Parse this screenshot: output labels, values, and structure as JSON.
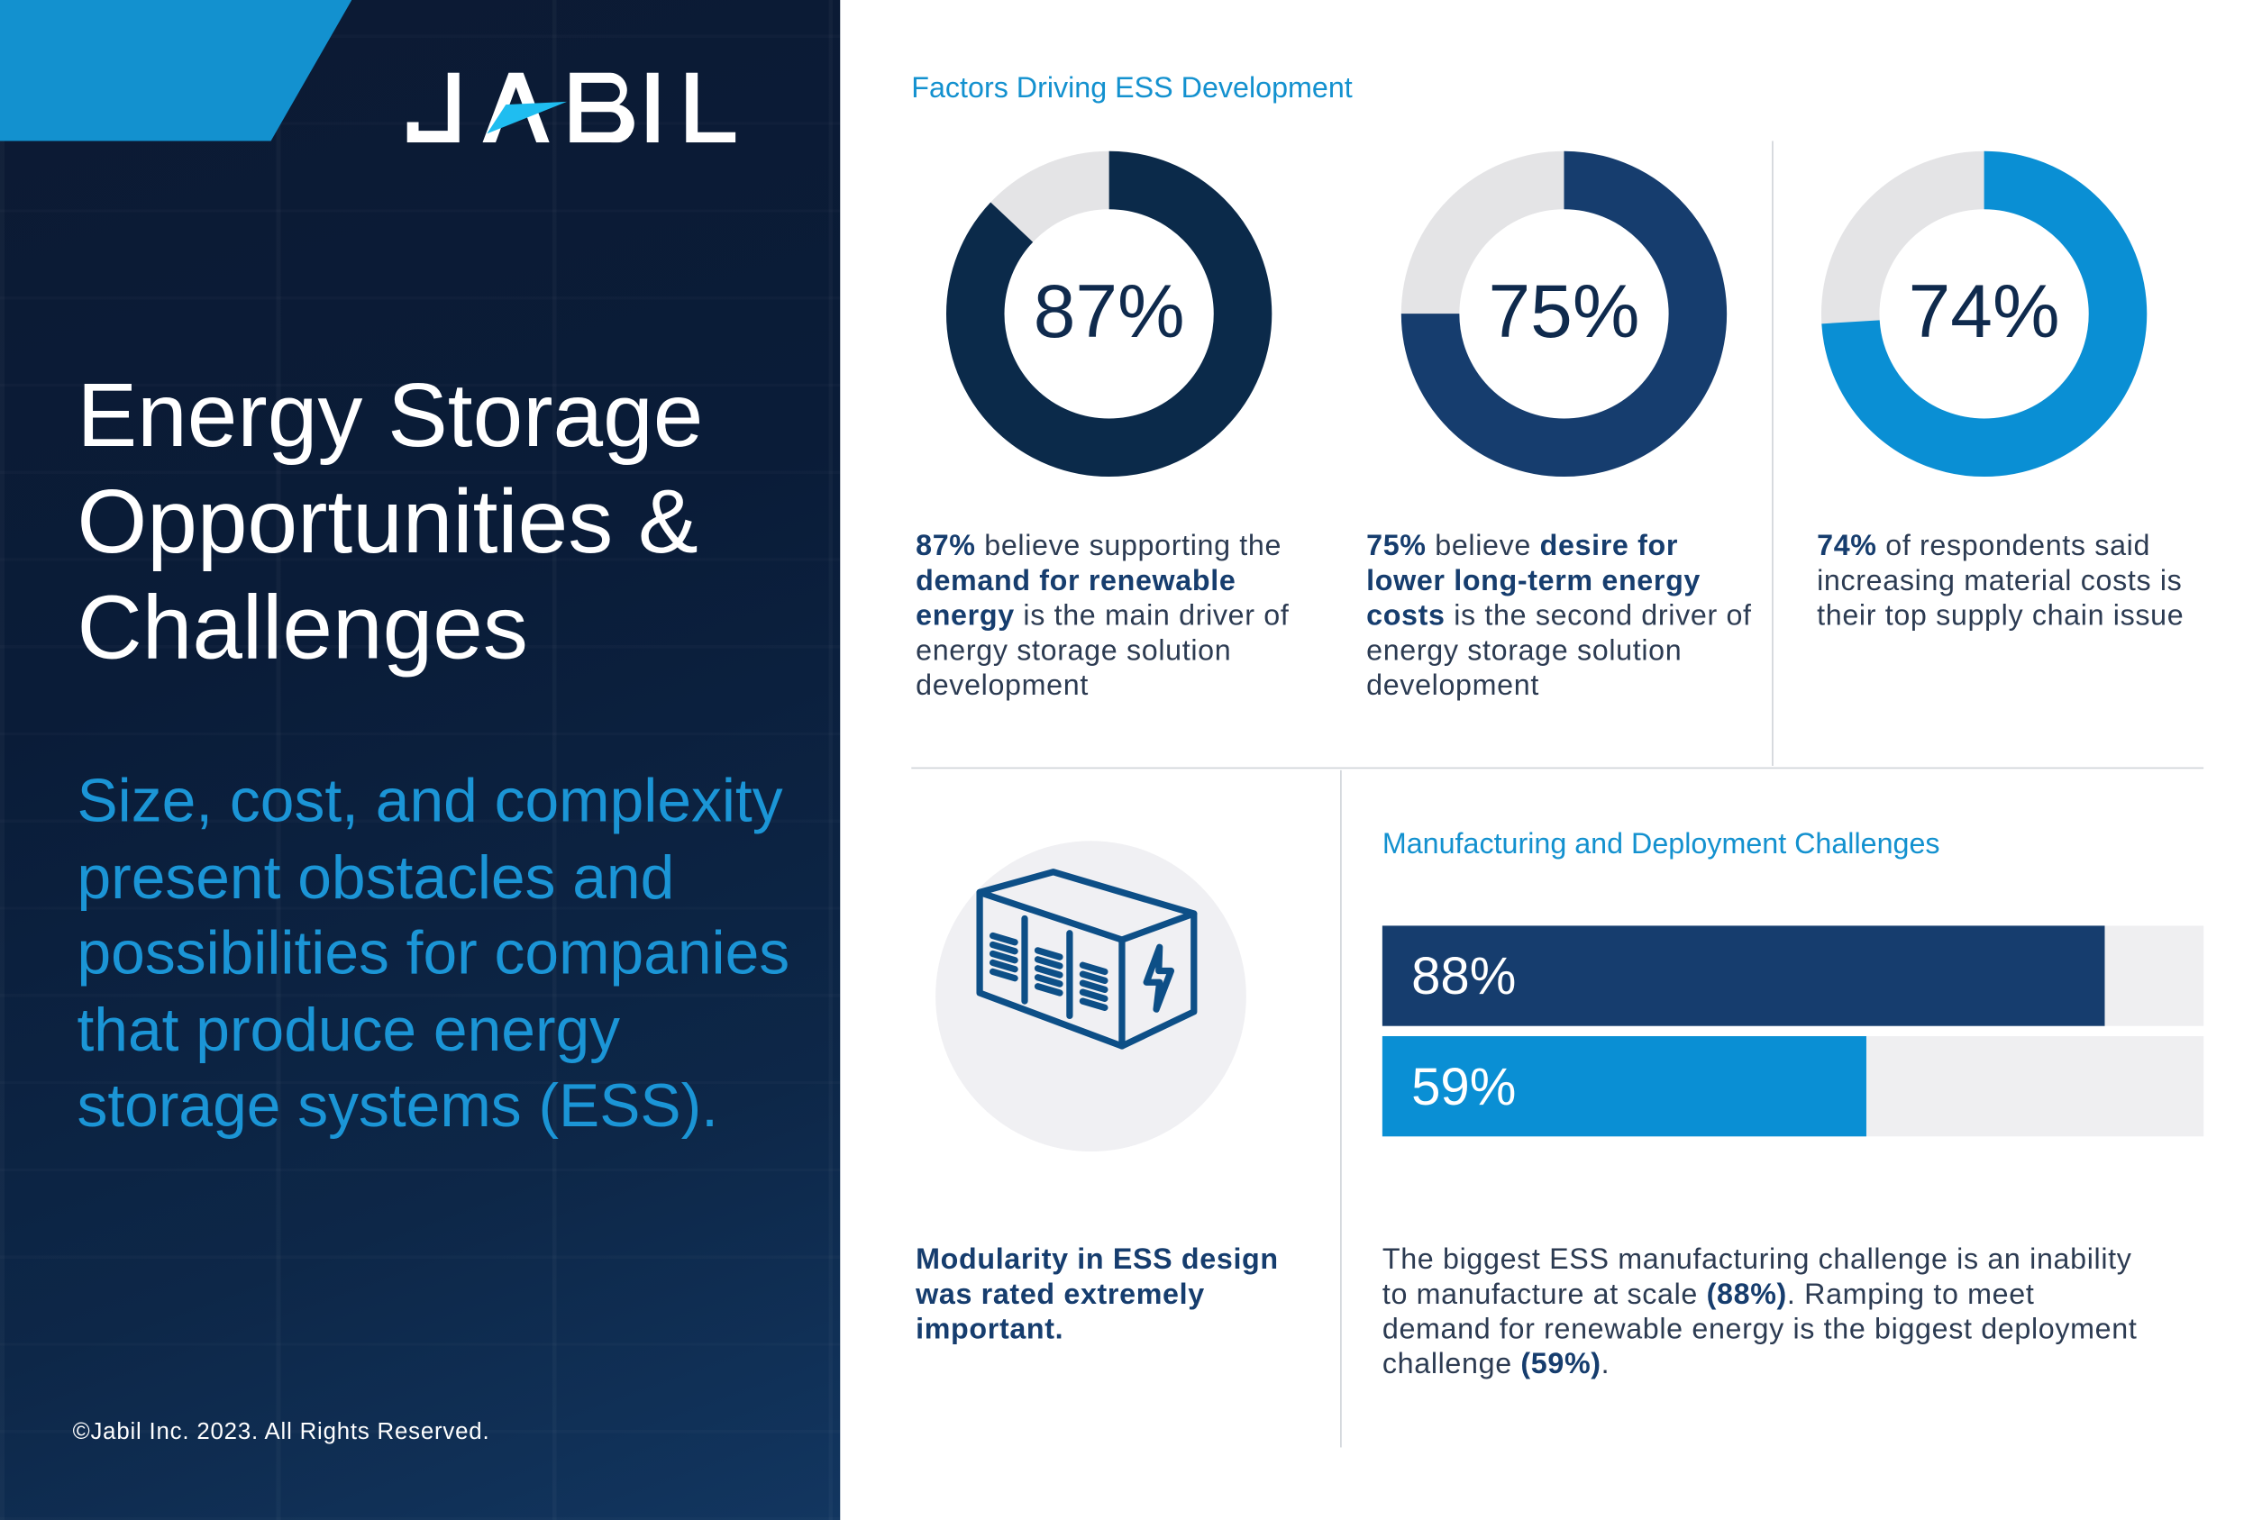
{
  "brand": {
    "logo_text": "JABIL",
    "accent": "#1391cf",
    "navy": "#0b2a4a"
  },
  "left": {
    "title_lines": [
      "Energy Storage",
      "Opportunities &",
      "Challenges"
    ],
    "subtitle": "Size, cost, and complexity present obstacles and possibilities for companies that produce energy storage systems (ESS).",
    "copyright": "©Jabil Inc. 2023. All Rights Reserved."
  },
  "factors": {
    "heading": "Factors Driving ESS Development",
    "donuts": [
      {
        "value": 87,
        "label": "87%",
        "color": "#0b2a4a",
        "caption": [
          {
            "b": "87%"
          },
          {
            "t": " believe supporting the "
          },
          {
            "b": "demand for renewable energy"
          },
          {
            "t": " is the main driver of energy storage solution development"
          }
        ]
      },
      {
        "value": 75,
        "label": "75%",
        "color": "#163d6e",
        "caption": [
          {
            "b": "75%"
          },
          {
            "t": " believe "
          },
          {
            "b": "desire for lower long-term energy costs"
          },
          {
            "t": " is the second driver of energy storage solution development"
          }
        ]
      },
      {
        "value": 74,
        "label": "74%",
        "color": "#0a8fd4",
        "caption": [
          {
            "b": "74%"
          },
          {
            "t": " of respondents said increasing material costs is their top supply chain issue"
          }
        ]
      }
    ]
  },
  "modularity": {
    "icon": "energy-storage-container-icon",
    "caption": "Modularity in ESS design was rated extremely important."
  },
  "challenges": {
    "heading": "Manufacturing and Deployment Challenges",
    "bars": [
      {
        "value": 88,
        "label": "88%",
        "color": "#163d6e"
      },
      {
        "value": 59,
        "label": "59%",
        "color": "#0a8fd4"
      }
    ],
    "caption": [
      {
        "t": "The biggest ESS manufacturing challenge is an inability to manufacture at scale "
      },
      {
        "b": "(88%)"
      },
      {
        "t": ". Ramping to meet demand for renewable energy is the biggest deployment challenge "
      },
      {
        "b": "(59%)"
      },
      {
        "t": "."
      }
    ]
  }
}
